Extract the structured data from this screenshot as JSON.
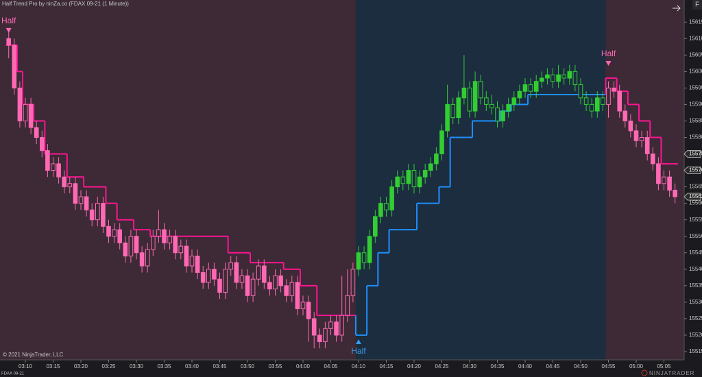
{
  "chart_data": {
    "type": "candlestick",
    "title": "Half Trend Pro by ninZa.co (FDAX 09-21 (1 Minute))",
    "copyright": "© 2021 NinjaTrader, LLC",
    "instrument": "FDAX 09-21",
    "brand": "NINJATRADER",
    "panel_button": "F",
    "ylim": [
      15512.5,
      15621.7
    ],
    "yticks": [
      15515,
      15520,
      15525,
      15530,
      15535,
      15540,
      15545,
      15550,
      15555,
      15560,
      15565,
      15580,
      15585,
      15590,
      15595,
      15600,
      15605,
      15610,
      15615
    ],
    "axis_markers": [
      15575,
      15570,
      15562
    ],
    "categories": [
      null,
      null,
      null,
      "03:10",
      null,
      null,
      null,
      null,
      "03:15",
      null,
      null,
      null,
      null,
      "03:20",
      null,
      null,
      null,
      null,
      "03:25",
      null,
      null,
      null,
      null,
      "03:30",
      null,
      null,
      null,
      null,
      "03:35",
      null,
      null,
      null,
      null,
      "03:40",
      null,
      null,
      null,
      null,
      "03:45",
      null,
      null,
      null,
      null,
      "03:50",
      null,
      null,
      null,
      null,
      "03:55",
      null,
      null,
      null,
      null,
      "04:00",
      null,
      null,
      null,
      null,
      "04:05",
      null,
      null,
      null,
      null,
      "04:10",
      null,
      null,
      null,
      null,
      "04:15",
      null,
      null,
      null,
      null,
      "04:20",
      null,
      null,
      null,
      null,
      "04:25",
      null,
      null,
      null,
      null,
      "04:30",
      null,
      null,
      null,
      null,
      "04:35",
      null,
      null,
      null,
      null,
      "04:40",
      null,
      null,
      null,
      null,
      "04:45",
      null,
      null,
      null,
      null,
      "04:50",
      null,
      null,
      null,
      null,
      "04:55",
      null,
      null,
      null,
      null,
      "05:00",
      null,
      null,
      null,
      null,
      "05:05",
      null,
      null
    ],
    "ohlc": [
      [
        15610,
        15612,
        15604,
        15608
      ],
      [
        15608,
        15610,
        15593,
        15595
      ],
      [
        15595,
        15597,
        15583,
        15585
      ],
      [
        15585,
        15592,
        15583,
        15590
      ],
      [
        15590,
        15592,
        15581,
        15583
      ],
      [
        15583,
        15585,
        15578,
        15580
      ],
      [
        15580,
        15582,
        15574,
        15576
      ],
      [
        15576,
        15578,
        15568,
        15570
      ],
      [
        15570,
        15574,
        15568,
        15572
      ],
      [
        15572,
        15574,
        15566,
        15568
      ],
      [
        15568,
        15570,
        15563,
        15565
      ],
      [
        15565,
        15568,
        15563,
        15566
      ],
      [
        15566,
        15568,
        15558,
        15560
      ],
      [
        15560,
        15564,
        15558,
        15562
      ],
      [
        15562,
        15564,
        15556,
        15558
      ],
      [
        15558,
        15560,
        15553,
        15555
      ],
      [
        15555,
        15562,
        15553,
        15560
      ],
      [
        15560,
        15562,
        15551,
        15553
      ],
      [
        15553,
        15555,
        15548,
        15550
      ],
      [
        15550,
        15554,
        15548,
        15552
      ],
      [
        15552,
        15554,
        15546,
        15548
      ],
      [
        15548,
        15550,
        15542,
        15544
      ],
      [
        15544,
        15552,
        15542,
        15550
      ],
      [
        15550,
        15552,
        15543,
        15545
      ],
      [
        15545,
        15547,
        15539,
        15541
      ],
      [
        15541,
        15548,
        15539,
        15546
      ],
      [
        15546,
        15552,
        15544,
        15550
      ],
      [
        15550,
        15558,
        15548,
        15552
      ],
      [
        15552,
        15554,
        15546,
        15548
      ],
      [
        15548,
        15552,
        15546,
        15550
      ],
      [
        15550,
        15552,
        15543,
        15545
      ],
      [
        15545,
        15549,
        15543,
        15547
      ],
      [
        15547,
        15549,
        15539,
        15541
      ],
      [
        15541,
        15546,
        15539,
        15544
      ],
      [
        15544,
        15546,
        15537,
        15539
      ],
      [
        15539,
        15541,
        15534,
        15536
      ],
      [
        15536,
        15542,
        15534,
        15540
      ],
      [
        15540,
        15542,
        15535,
        15537
      ],
      [
        15537,
        15539,
        15531,
        15533
      ],
      [
        15533,
        15542,
        15531,
        15540
      ],
      [
        15540,
        15544,
        15538,
        15542
      ],
      [
        15542,
        15544,
        15534,
        15536
      ],
      [
        15536,
        15540,
        15534,
        15538
      ],
      [
        15538,
        15540,
        15530,
        15532
      ],
      [
        15532,
        15539,
        15530,
        15537
      ],
      [
        15537,
        15543,
        15535,
        15541
      ],
      [
        15541,
        15543,
        15534,
        15536
      ],
      [
        15536,
        15538,
        15532,
        15534
      ],
      [
        15534,
        15540,
        15532,
        15538
      ],
      [
        15538,
        15540,
        15533,
        15535
      ],
      [
        15535,
        15537,
        15530,
        15532
      ],
      [
        15532,
        15538,
        15530,
        15536
      ],
      [
        15536,
        15538,
        15526,
        15528
      ],
      [
        15528,
        15532,
        15526,
        15530
      ],
      [
        15530,
        15532,
        15518,
        15525
      ],
      [
        15525,
        15527,
        15516,
        15520
      ],
      [
        15520,
        15522,
        15516,
        15518
      ],
      [
        15518,
        15524,
        15516,
        15522
      ],
      [
        15522,
        15526,
        15520,
        15524
      ],
      [
        15524,
        15526,
        15518,
        15520
      ],
      [
        15520,
        15538,
        15518,
        15526
      ],
      [
        15526,
        15540,
        15524,
        15532
      ],
      [
        15532,
        15542,
        15530,
        15540
      ],
      [
        15540,
        15547,
        15538,
        15545
      ],
      [
        15545,
        15547,
        15540,
        15542
      ],
      [
        15542,
        15552,
        15540,
        15550
      ],
      [
        15550,
        15558,
        15548,
        15556
      ],
      [
        15556,
        15562,
        15554,
        15560
      ],
      [
        15560,
        15562,
        15556,
        15558
      ],
      [
        15558,
        15567,
        15556,
        15565
      ],
      [
        15565,
        15570,
        15563,
        15568
      ],
      [
        15568,
        15570,
        15564,
        15566
      ],
      [
        15566,
        15572,
        15564,
        15570
      ],
      [
        15570,
        15572,
        15563,
        15565
      ],
      [
        15565,
        15570,
        15563,
        15568
      ],
      [
        15568,
        15572,
        15566,
        15570
      ],
      [
        15570,
        15574,
        15568,
        15572
      ],
      [
        15572,
        15577,
        15570,
        15575
      ],
      [
        15575,
        15584,
        15573,
        15582
      ],
      [
        15582,
        15596,
        15580,
        15590
      ],
      [
        15590,
        15592,
        15584,
        15586
      ],
      [
        15586,
        15594,
        15584,
        15592
      ],
      [
        15592,
        15605,
        15590,
        15595
      ],
      [
        15595,
        15597,
        15586,
        15588
      ],
      [
        15588,
        15600,
        15586,
        15597
      ],
      [
        15597,
        15599,
        15590,
        15592
      ],
      [
        15592,
        15594,
        15588,
        15590
      ],
      [
        15590,
        15593,
        15587,
        15589
      ],
      [
        15589,
        15591,
        15583,
        15585
      ],
      [
        15585,
        15590,
        15583,
        15588
      ],
      [
        15588,
        15592,
        15586,
        15590
      ],
      [
        15590,
        15594,
        15588,
        15592
      ],
      [
        15592,
        15596,
        15590,
        15594
      ],
      [
        15594,
        15598,
        15592,
        15596
      ],
      [
        15596,
        15598,
        15592,
        15594
      ],
      [
        15594,
        15599,
        15592,
        15597
      ],
      [
        15597,
        15600,
        15595,
        15598
      ],
      [
        15598,
        15601,
        15596,
        15599
      ],
      [
        15599,
        15601,
        15595,
        15597
      ],
      [
        15597,
        15602,
        15595,
        15599
      ],
      [
        15599,
        15601,
        15596,
        15598
      ],
      [
        15598,
        15602,
        15596,
        15600
      ],
      [
        15600,
        15602,
        15594,
        15596
      ],
      [
        15596,
        15598,
        15590,
        15592
      ],
      [
        15592,
        15594,
        15588,
        15590
      ],
      [
        15590,
        15592,
        15586,
        15588
      ],
      [
        15588,
        15594,
        15586,
        15592
      ],
      [
        15592,
        15594,
        15588,
        15590
      ],
      [
        15590,
        15597,
        15586,
        15595
      ],
      [
        15595,
        15597,
        15592,
        15594
      ],
      [
        15594,
        15596,
        15586,
        15588
      ],
      [
        15588,
        15590,
        15583,
        15585
      ],
      [
        15585,
        15587,
        15580,
        15582
      ],
      [
        15582,
        15584,
        15577,
        15579
      ],
      [
        15579,
        15582,
        15577,
        15580
      ],
      [
        15580,
        15582,
        15573,
        15575
      ],
      [
        15575,
        15577,
        15570,
        15572
      ],
      [
        15572,
        15574,
        15564,
        15566
      ],
      [
        15566,
        15570,
        15564,
        15568
      ],
      [
        15568,
        15570,
        15562,
        15564
      ],
      [
        15564,
        15566,
        15560,
        15562
      ]
    ],
    "halftrend": [
      15608,
      15608,
      15600,
      15590,
      15590,
      15585,
      15585,
      15575,
      15575,
      15575,
      15575,
      15568,
      15568,
      15568,
      15565,
      15565,
      15565,
      15565,
      15560,
      15560,
      15555,
      15555,
      15555,
      15552,
      15552,
      15552,
      15550,
      15550,
      15550,
      15550,
      15550,
      15550,
      15550,
      15550,
      15550,
      15550,
      15550,
      15550,
      15550,
      15550,
      15545,
      15545,
      15545,
      15545,
      15542,
      15542,
      15542,
      15542,
      15542,
      15542,
      15540,
      15540,
      15540,
      15535,
      15535,
      15535,
      15526,
      15526,
      15526,
      15526,
      15526,
      15526,
      15526,
      15520,
      15520,
      15535,
      15535,
      15545,
      15545,
      15552,
      15552,
      15552,
      15552,
      15552,
      15560,
      15560,
      15560,
      15560,
      15565,
      15565,
      15580,
      15580,
      15580,
      15580,
      15585,
      15585,
      15585,
      15585,
      15585,
      15588,
      15588,
      15590,
      15590,
      15590,
      15593,
      15593,
      15593,
      15593,
      15593,
      15593,
      15593,
      15593,
      15593,
      15593,
      15593,
      15593,
      15593,
      15593,
      15598,
      15598,
      15594,
      15594,
      15590,
      15590,
      15585,
      15585,
      15580,
      15580,
      15572,
      15572,
      15572
    ],
    "signals": [
      {
        "index": 0,
        "direction": "down",
        "label": "Half"
      },
      {
        "index": 63,
        "direction": "up",
        "label": "Half"
      },
      {
        "index": 108,
        "direction": "down",
        "label": "Half"
      }
    ],
    "colors": {
      "down": "#ff69b4",
      "up": "#32cd32",
      "down_line": "#ff1493",
      "up_line": "#1e90ff",
      "down_bg": "#3d2a36",
      "up_bg": "#1c2d40",
      "down_signal": "#ff69b4",
      "up_signal": "#3a9cf0"
    }
  }
}
